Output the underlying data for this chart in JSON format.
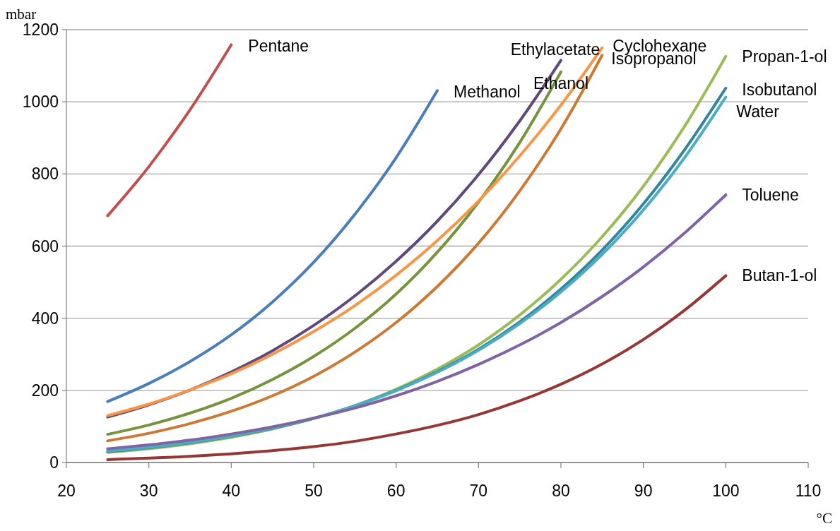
{
  "chart_data": {
    "type": "line",
    "xlabel": "°C",
    "ylabel": "mbar",
    "xlim": [
      20,
      110
    ],
    "xticks": [
      20,
      30,
      40,
      50,
      60,
      70,
      80,
      90,
      100,
      110
    ],
    "ylim": [
      0,
      1200
    ],
    "yticks": [
      0,
      200,
      400,
      600,
      800,
      1000,
      1200
    ],
    "grid": "y",
    "series": [
      {
        "name": "Pentane",
        "color": "#c0504d",
        "x": [
          25,
          30,
          35,
          40
        ],
        "values": [
          684,
          820,
          978,
          1158
        ]
      },
      {
        "name": "Methanol",
        "color": "#4a7ebb",
        "x": [
          25,
          30,
          35,
          40,
          45,
          50,
          55,
          60,
          65
        ],
        "values": [
          169,
          219,
          280,
          354,
          445,
          555,
          688,
          845,
          1031
        ]
      },
      {
        "name": "Ethylacetate",
        "color": "#5f497a",
        "x": [
          25,
          30,
          35,
          40,
          45,
          50,
          55,
          60,
          65,
          70,
          75,
          80
        ],
        "values": [
          126,
          160,
          201,
          251,
          310,
          380,
          462,
          558,
          669,
          798,
          947,
          1115
        ]
      },
      {
        "name": "Ethanol",
        "color": "#77933c",
        "x": [
          25,
          30,
          35,
          40,
          45,
          50,
          55,
          60,
          65,
          70,
          75,
          80
        ],
        "values": [
          78,
          104,
          137,
          178,
          230,
          294,
          372,
          467,
          583,
          722,
          887,
          1083
        ]
      },
      {
        "name": "Cyclohexane",
        "color": "#f79646",
        "x": [
          25,
          30,
          35,
          40,
          45,
          50,
          55,
          60,
          65,
          70,
          75,
          80,
          85
        ],
        "values": [
          130,
          162,
          201,
          246,
          300,
          363,
          435,
          519,
          615,
          725,
          850,
          991,
          1150
        ]
      },
      {
        "name": "Isopropanol",
        "color": "#cc7a33",
        "x": [
          25,
          30,
          35,
          40,
          45,
          50,
          55,
          60,
          65,
          70,
          75,
          80,
          85
        ],
        "values": [
          60,
          81,
          108,
          142,
          185,
          239,
          306,
          388,
          488,
          608,
          753,
          925,
          1129
        ]
      },
      {
        "name": "Propan-1-ol",
        "color": "#9bbb59",
        "x": [
          25,
          30,
          35,
          40,
          45,
          50,
          55,
          60,
          65,
          70,
          75,
          80,
          85,
          90,
          95,
          100
        ],
        "values": [
          28,
          38,
          52,
          70,
          93,
          122,
          158,
          203,
          259,
          326,
          409,
          508,
          626,
          766,
          932,
          1126
        ]
      },
      {
        "name": "Isobutanol",
        "color": "#31859c",
        "x": [
          25,
          30,
          35,
          40,
          45,
          50,
          55,
          60,
          65,
          70,
          75,
          80,
          85,
          90,
          95,
          100
        ],
        "values": [
          30,
          41,
          55,
          73,
          95,
          122,
          157,
          200,
          252,
          314,
          390,
          481,
          589,
          717,
          867,
          1038
        ]
      },
      {
        "name": "Water",
        "color": "#4bacc6",
        "x": [
          25,
          30,
          35,
          40,
          45,
          50,
          55,
          60,
          65,
          70,
          75,
          80,
          85,
          90,
          95,
          100
        ],
        "values": [
          32,
          42,
          56,
          74,
          96,
          123,
          157,
          199,
          250,
          311,
          385,
          473,
          577,
          700,
          845,
          1013
        ]
      },
      {
        "name": "Toluene",
        "color": "#8064a2",
        "x": [
          25,
          30,
          35,
          40,
          45,
          50,
          55,
          60,
          65,
          70,
          75,
          80,
          85,
          90,
          95,
          100
        ],
        "values": [
          38,
          49,
          62,
          79,
          99,
          123,
          151,
          185,
          225,
          272,
          326,
          388,
          460,
          542,
          636,
          742
        ]
      },
      {
        "name": "Butan-1-ol",
        "color": "#953735",
        "x": [
          25,
          30,
          35,
          40,
          45,
          50,
          55,
          60,
          65,
          70,
          75,
          80,
          85,
          90,
          95,
          100
        ],
        "values": [
          8,
          12,
          17,
          24,
          33,
          44,
          59,
          79,
          103,
          133,
          171,
          217,
          273,
          341,
          422,
          518
        ]
      }
    ]
  }
}
